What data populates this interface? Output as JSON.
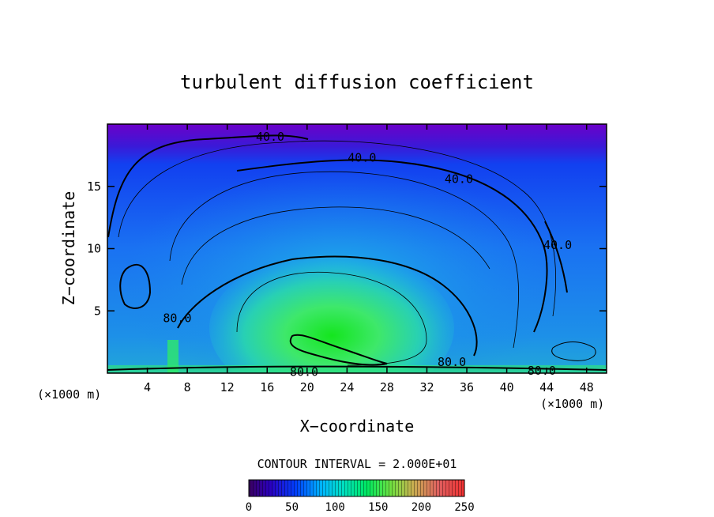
{
  "chart_data": {
    "type": "heatmap",
    "title": "turbulent diffusion coefficient",
    "xlabel": "X−coordinate",
    "ylabel": "Z−coordinate",
    "x_unit": "(×1000 m)",
    "y_unit": "(×1000 m)",
    "xlim": [
      0,
      50
    ],
    "ylim": [
      0,
      20
    ],
    "x_ticks": [
      4,
      8,
      12,
      16,
      20,
      24,
      28,
      32,
      36,
      40,
      44,
      48
    ],
    "y_ticks": [
      5,
      10,
      15
    ],
    "contour_interval_text": "CONTOUR INTERVAL = 2.000E+01",
    "contour_labels": [
      {
        "text": "40.0",
        "x": 16.3,
        "y": 19.0
      },
      {
        "text": "40.0",
        "x": 25.5,
        "y": 17.3
      },
      {
        "text": "40.0",
        "x": 35.2,
        "y": 15.6
      },
      {
        "text": "40.0",
        "x": 45.1,
        "y": 10.3
      },
      {
        "text": "80.0",
        "x": 7.0,
        "y": 4.4
      },
      {
        "text": "80.0",
        "x": 19.7,
        "y": 0.1
      },
      {
        "text": "80.0",
        "x": 34.5,
        "y": 0.9
      },
      {
        "text": "80.0",
        "x": 43.5,
        "y": 0.2
      }
    ],
    "colorbar": {
      "min": 0,
      "max": 250,
      "ticks": [
        0,
        50,
        100,
        150,
        200,
        250
      ]
    },
    "grid": false
  }
}
